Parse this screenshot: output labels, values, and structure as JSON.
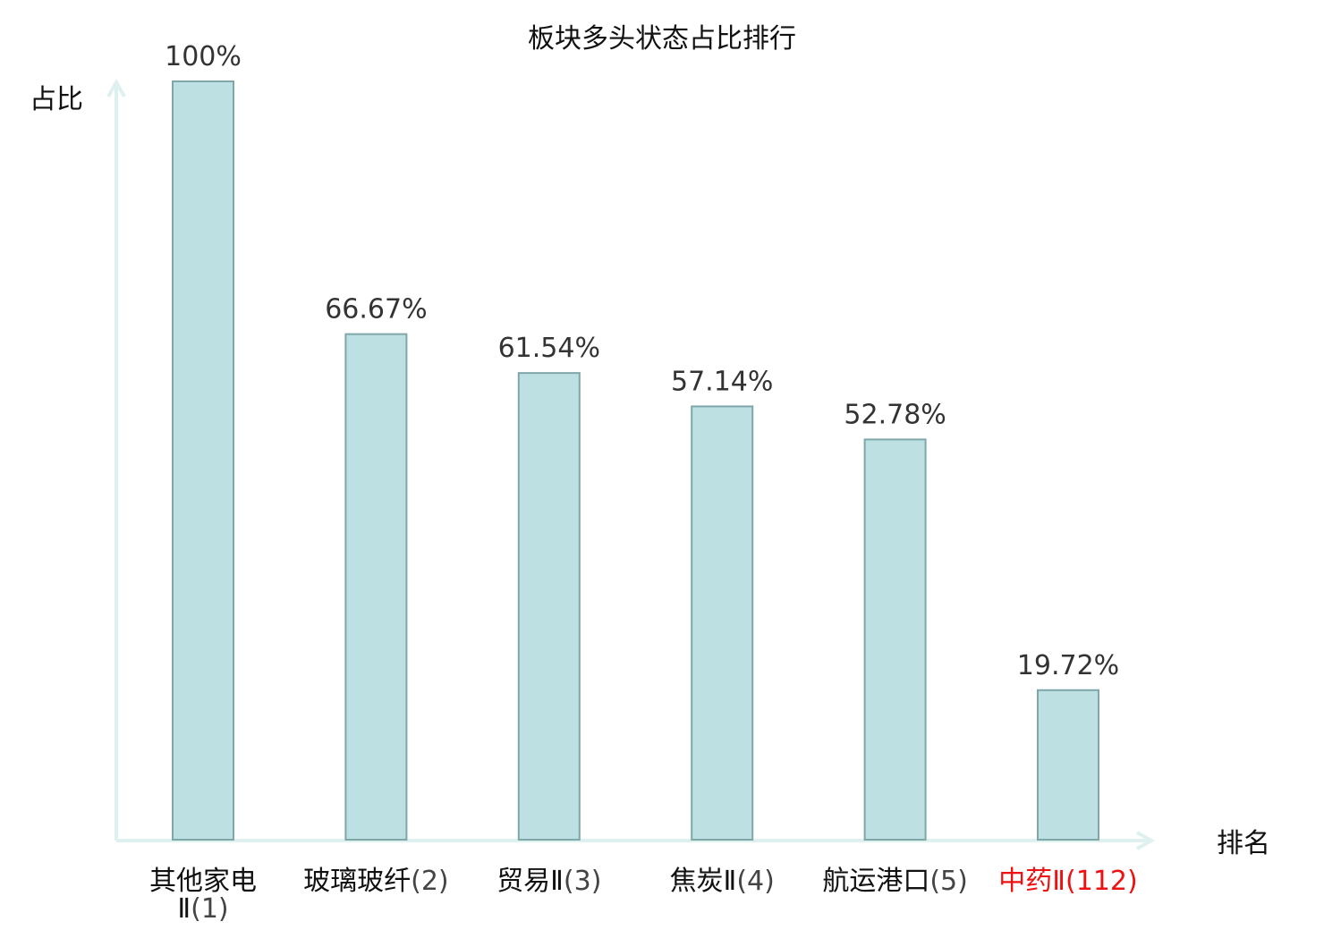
{
  "chart_data": {
    "type": "bar",
    "title": "板块多头状态占比排行",
    "ylabel": "占比",
    "xlabel": "排名",
    "ylim": [
      0,
      100
    ],
    "grid": false,
    "categories": [
      {
        "name": "其他家电Ⅱ",
        "rank": "(1)",
        "highlight": false
      },
      {
        "name": "玻璃玻纤",
        "rank": "(2)",
        "highlight": false
      },
      {
        "name": "贸易Ⅱ",
        "rank": "(3)",
        "highlight": false
      },
      {
        "name": "焦炭Ⅱ",
        "rank": "(4)",
        "highlight": false
      },
      {
        "name": "航运港口",
        "rank": "(5)",
        "highlight": false
      },
      {
        "name": "中药Ⅱ",
        "rank": "(112)",
        "highlight": true
      }
    ],
    "values": [
      100,
      66.67,
      61.54,
      57.14,
      52.78,
      19.72
    ],
    "value_labels": [
      "100%",
      "66.67%",
      "61.54%",
      "57.14%",
      "52.78%",
      "19.72%"
    ],
    "colors": {
      "bar_fill": "#bde0e2",
      "bar_stroke": "#7fa6a8",
      "axis": "#dff1ef",
      "label_name": "#111111",
      "label_rank": "#444444",
      "highlight": "#ee1111"
    }
  }
}
